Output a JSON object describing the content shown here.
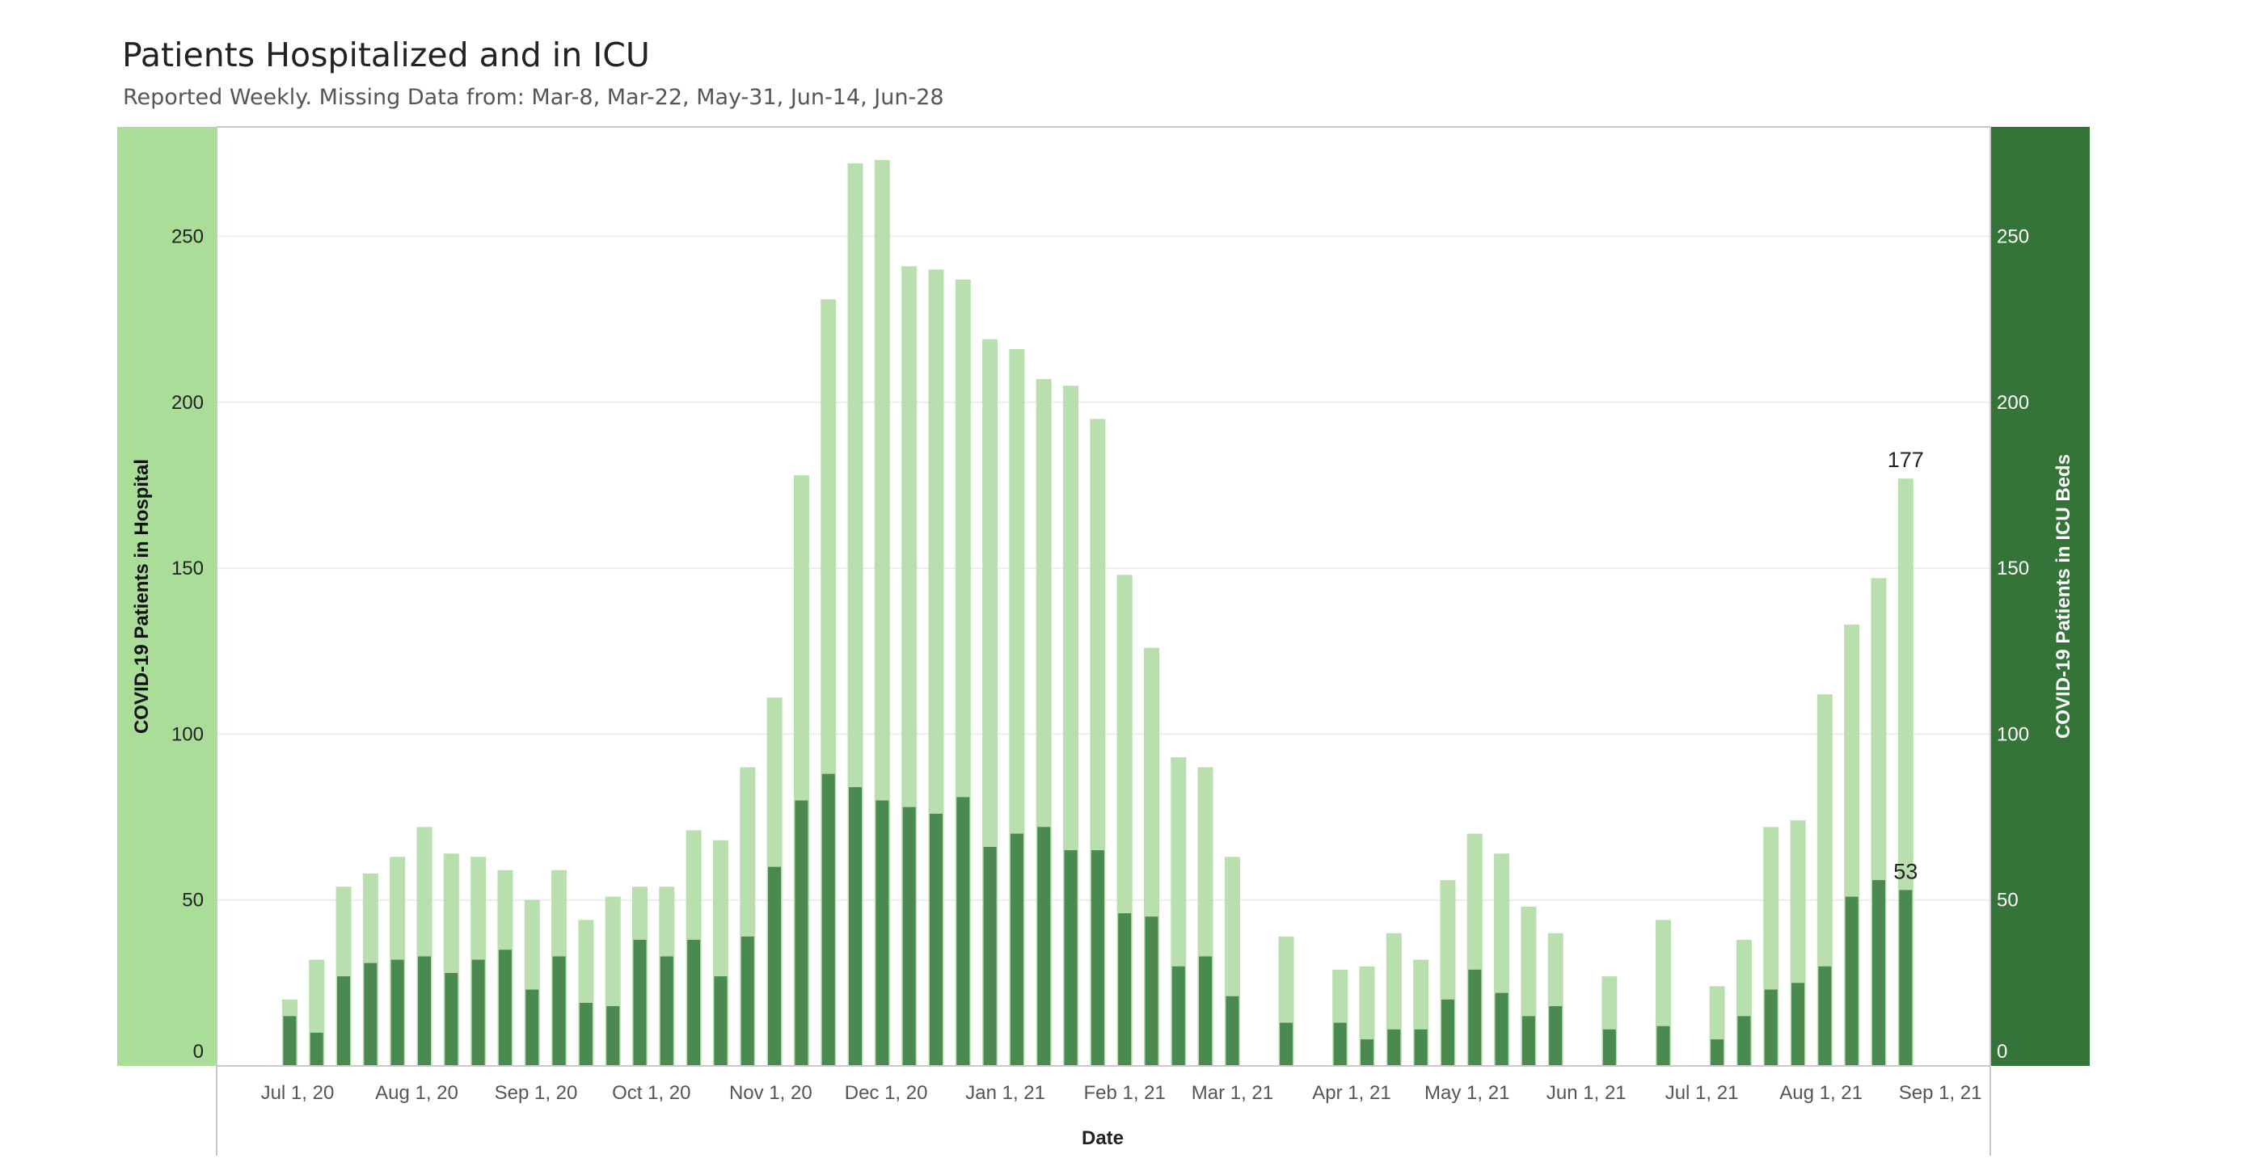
{
  "title": "Patients Hospitalized and in ICU",
  "subtitle": "Reported Weekly. Missing Data from: Mar-8, Mar-22, May-31, Jun-14, Jun-28",
  "colors": {
    "hospital": "#b9dfae",
    "icu": "#4a8950",
    "left_axis_band": "#a9dd98",
    "right_axis_band": "#347439",
    "grid": "#ececec",
    "axis_line": "#c8c8c8"
  },
  "chart_data": {
    "type": "bar",
    "title": "Patients Hospitalized and in ICU",
    "subtitle": "Reported Weekly. Missing Data from: Mar-8, Mar-22, May-31, Jun-14, Jun-28",
    "xlabel": "Date",
    "ylabel": "COVID-19 Patients in Hospital",
    "y2label": "COVID-19 Patients in ICU Beds",
    "ylim": [
      0,
      283
    ],
    "y2lim": [
      0,
      283
    ],
    "yticks": [
      0,
      50,
      100,
      150,
      200,
      250
    ],
    "y2ticks": [
      0,
      50,
      100,
      150,
      200,
      250
    ],
    "xlim": [
      "2020-06-10",
      "2021-09-14"
    ],
    "xticks": [
      {
        "date": "2020-07-01",
        "label": "Jul 1, 20"
      },
      {
        "date": "2020-08-01",
        "label": "Aug 1, 20"
      },
      {
        "date": "2020-09-01",
        "label": "Sep 1, 20"
      },
      {
        "date": "2020-10-01",
        "label": "Oct 1, 20"
      },
      {
        "date": "2020-11-01",
        "label": "Nov 1, 20"
      },
      {
        "date": "2020-12-01",
        "label": "Dec 1, 20"
      },
      {
        "date": "2021-01-01",
        "label": "Jan 1, 21"
      },
      {
        "date": "2021-02-01",
        "label": "Feb 1, 21"
      },
      {
        "date": "2021-03-01",
        "label": "Mar 1, 21"
      },
      {
        "date": "2021-04-01",
        "label": "Apr 1, 21"
      },
      {
        "date": "2021-05-01",
        "label": "May 1, 21"
      },
      {
        "date": "2021-06-01",
        "label": "Jun 1, 21"
      },
      {
        "date": "2021-07-01",
        "label": "Jul 1, 21"
      },
      {
        "date": "2021-08-01",
        "label": "Aug 1, 21"
      },
      {
        "date": "2021-09-01",
        "label": "Sep 1, 21"
      }
    ],
    "grid": true,
    "series": [
      {
        "name": "COVID-19 Patients in Hospital",
        "axis": "left",
        "style": "wide-bar",
        "points": [
          {
            "x": "2020-06-29",
            "y": 20
          },
          {
            "x": "2020-07-06",
            "y": 32
          },
          {
            "x": "2020-07-13",
            "y": 54
          },
          {
            "x": "2020-07-20",
            "y": 58
          },
          {
            "x": "2020-07-27",
            "y": 63
          },
          {
            "x": "2020-08-03",
            "y": 72
          },
          {
            "x": "2020-08-10",
            "y": 64
          },
          {
            "x": "2020-08-17",
            "y": 63
          },
          {
            "x": "2020-08-24",
            "y": 59
          },
          {
            "x": "2020-08-31",
            "y": 50
          },
          {
            "x": "2020-09-07",
            "y": 59
          },
          {
            "x": "2020-09-14",
            "y": 44
          },
          {
            "x": "2020-09-21",
            "y": 51
          },
          {
            "x": "2020-09-28",
            "y": 54
          },
          {
            "x": "2020-10-05",
            "y": 54
          },
          {
            "x": "2020-10-12",
            "y": 71
          },
          {
            "x": "2020-10-19",
            "y": 68
          },
          {
            "x": "2020-10-26",
            "y": 90
          },
          {
            "x": "2020-11-02",
            "y": 111
          },
          {
            "x": "2020-11-09",
            "y": 178
          },
          {
            "x": "2020-11-16",
            "y": 231
          },
          {
            "x": "2020-11-23",
            "y": 272
          },
          {
            "x": "2020-11-30",
            "y": 273
          },
          {
            "x": "2020-12-07",
            "y": 241
          },
          {
            "x": "2020-12-14",
            "y": 240
          },
          {
            "x": "2020-12-21",
            "y": 237
          },
          {
            "x": "2020-12-28",
            "y": 219
          },
          {
            "x": "2021-01-04",
            "y": 216
          },
          {
            "x": "2021-01-11",
            "y": 207
          },
          {
            "x": "2021-01-18",
            "y": 205
          },
          {
            "x": "2021-01-25",
            "y": 195
          },
          {
            "x": "2021-02-01",
            "y": 148
          },
          {
            "x": "2021-02-08",
            "y": 126
          },
          {
            "x": "2021-02-15",
            "y": 93
          },
          {
            "x": "2021-02-22",
            "y": 90
          },
          {
            "x": "2021-03-01",
            "y": 63
          },
          {
            "x": "2021-03-15",
            "y": 39
          },
          {
            "x": "2021-03-29",
            "y": 29
          },
          {
            "x": "2021-04-05",
            "y": 30
          },
          {
            "x": "2021-04-12",
            "y": 40
          },
          {
            "x": "2021-04-19",
            "y": 32
          },
          {
            "x": "2021-04-26",
            "y": 56
          },
          {
            "x": "2021-05-03",
            "y": 70
          },
          {
            "x": "2021-05-10",
            "y": 64
          },
          {
            "x": "2021-05-17",
            "y": 48
          },
          {
            "x": "2021-05-24",
            "y": 40
          },
          {
            "x": "2021-06-07",
            "y": 27
          },
          {
            "x": "2021-06-21",
            "y": 44
          },
          {
            "x": "2021-07-05",
            "y": 24
          },
          {
            "x": "2021-07-12",
            "y": 38
          },
          {
            "x": "2021-07-19",
            "y": 72
          },
          {
            "x": "2021-07-26",
            "y": 74
          },
          {
            "x": "2021-08-02",
            "y": 112
          },
          {
            "x": "2021-08-09",
            "y": 133
          },
          {
            "x": "2021-08-16",
            "y": 147
          },
          {
            "x": "2021-08-23",
            "y": 177
          }
        ]
      },
      {
        "name": "COVID-19 Patients in ICU Beds",
        "axis": "right",
        "style": "narrow-bar",
        "points": [
          {
            "x": "2020-06-29",
            "y": 15
          },
          {
            "x": "2020-07-06",
            "y": 10
          },
          {
            "x": "2020-07-13",
            "y": 27
          },
          {
            "x": "2020-07-20",
            "y": 31
          },
          {
            "x": "2020-07-27",
            "y": 32
          },
          {
            "x": "2020-08-03",
            "y": 33
          },
          {
            "x": "2020-08-10",
            "y": 28
          },
          {
            "x": "2020-08-17",
            "y": 32
          },
          {
            "x": "2020-08-24",
            "y": 35
          },
          {
            "x": "2020-08-31",
            "y": 23
          },
          {
            "x": "2020-09-07",
            "y": 33
          },
          {
            "x": "2020-09-14",
            "y": 19
          },
          {
            "x": "2020-09-21",
            "y": 18
          },
          {
            "x": "2020-09-28",
            "y": 38
          },
          {
            "x": "2020-10-05",
            "y": 33
          },
          {
            "x": "2020-10-12",
            "y": 38
          },
          {
            "x": "2020-10-19",
            "y": 27
          },
          {
            "x": "2020-10-26",
            "y": 39
          },
          {
            "x": "2020-11-02",
            "y": 60
          },
          {
            "x": "2020-11-09",
            "y": 80
          },
          {
            "x": "2020-11-16",
            "y": 88
          },
          {
            "x": "2020-11-23",
            "y": 84
          },
          {
            "x": "2020-11-30",
            "y": 80
          },
          {
            "x": "2020-12-07",
            "y": 78
          },
          {
            "x": "2020-12-14",
            "y": 76
          },
          {
            "x": "2020-12-21",
            "y": 81
          },
          {
            "x": "2020-12-28",
            "y": 66
          },
          {
            "x": "2021-01-04",
            "y": 70
          },
          {
            "x": "2021-01-11",
            "y": 72
          },
          {
            "x": "2021-01-18",
            "y": 65
          },
          {
            "x": "2021-01-25",
            "y": 65
          },
          {
            "x": "2021-02-01",
            "y": 46
          },
          {
            "x": "2021-02-08",
            "y": 45
          },
          {
            "x": "2021-02-15",
            "y": 30
          },
          {
            "x": "2021-02-22",
            "y": 33
          },
          {
            "x": "2021-03-01",
            "y": 21
          },
          {
            "x": "2021-03-15",
            "y": 13
          },
          {
            "x": "2021-03-29",
            "y": 13
          },
          {
            "x": "2021-04-05",
            "y": 8
          },
          {
            "x": "2021-04-12",
            "y": 11
          },
          {
            "x": "2021-04-19",
            "y": 11
          },
          {
            "x": "2021-04-26",
            "y": 20
          },
          {
            "x": "2021-05-03",
            "y": 29
          },
          {
            "x": "2021-05-10",
            "y": 22
          },
          {
            "x": "2021-05-17",
            "y": 15
          },
          {
            "x": "2021-05-24",
            "y": 18
          },
          {
            "x": "2021-06-07",
            "y": 11
          },
          {
            "x": "2021-06-21",
            "y": 12
          },
          {
            "x": "2021-07-05",
            "y": 8
          },
          {
            "x": "2021-07-12",
            "y": 15
          },
          {
            "x": "2021-07-19",
            "y": 23
          },
          {
            "x": "2021-07-26",
            "y": 25
          },
          {
            "x": "2021-08-02",
            "y": 30
          },
          {
            "x": "2021-08-09",
            "y": 51
          },
          {
            "x": "2021-08-16",
            "y": 56
          },
          {
            "x": "2021-08-23",
            "y": 53
          }
        ]
      }
    ],
    "annotations": [
      {
        "series": "COVID-19 Patients in Hospital",
        "x": "2021-08-23",
        "text": "177"
      },
      {
        "series": "COVID-19 Patients in ICU Beds",
        "x": "2021-08-23",
        "text": "53"
      }
    ]
  }
}
